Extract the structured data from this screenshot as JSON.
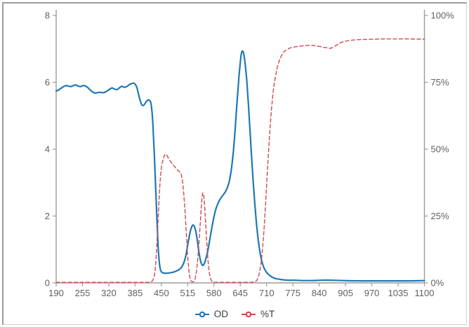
{
  "chart_data": {
    "type": "line",
    "title": "",
    "grid": false,
    "legend": {
      "position": "bottom"
    },
    "style": {
      "axis_color": "#9b9b9b",
      "tick_text_color": "#606060",
      "legend_text_color": "#3d3d3d",
      "background": "#ffffff"
    },
    "x_axis": {
      "label": "",
      "range": [
        190,
        1100
      ],
      "ticks": [
        190,
        255,
        320,
        385,
        450,
        515,
        580,
        645,
        710,
        775,
        840,
        905,
        970,
        1035,
        1100
      ]
    },
    "y_axis_left": {
      "label": "",
      "range": [
        0,
        8
      ],
      "tick_values": [
        0,
        2,
        4,
        6,
        8
      ],
      "tick_labels": [
        "0",
        "2",
        "4",
        "6",
        "8"
      ]
    },
    "y_axis_right": {
      "label": "",
      "range": [
        0,
        100
      ],
      "tick_values": [
        0,
        25,
        50,
        75,
        100
      ],
      "tick_labels": [
        "0%",
        "25%",
        "50%",
        "75%",
        "100%"
      ]
    },
    "series": [
      {
        "name": "OD",
        "axis": "left",
        "color": "#1f78b4",
        "style": "solid",
        "width": 2.2,
        "points": [
          [
            190,
            5.74
          ],
          [
            196,
            5.77
          ],
          [
            202,
            5.82
          ],
          [
            208,
            5.87
          ],
          [
            214,
            5.9
          ],
          [
            220,
            5.89
          ],
          [
            226,
            5.87
          ],
          [
            232,
            5.9
          ],
          [
            238,
            5.92
          ],
          [
            244,
            5.89
          ],
          [
            250,
            5.87
          ],
          [
            256,
            5.9
          ],
          [
            262,
            5.89
          ],
          [
            268,
            5.84
          ],
          [
            274,
            5.77
          ],
          [
            280,
            5.71
          ],
          [
            286,
            5.68
          ],
          [
            292,
            5.69
          ],
          [
            298,
            5.7
          ],
          [
            304,
            5.69
          ],
          [
            310,
            5.7
          ],
          [
            316,
            5.74
          ],
          [
            322,
            5.79
          ],
          [
            328,
            5.83
          ],
          [
            334,
            5.8
          ],
          [
            340,
            5.78
          ],
          [
            346,
            5.83
          ],
          [
            352,
            5.88
          ],
          [
            358,
            5.85
          ],
          [
            364,
            5.87
          ],
          [
            370,
            5.92
          ],
          [
            376,
            5.96
          ],
          [
            382,
            5.97
          ],
          [
            386,
            5.93
          ],
          [
            390,
            5.82
          ],
          [
            394,
            5.62
          ],
          [
            398,
            5.44
          ],
          [
            402,
            5.32
          ],
          [
            406,
            5.31
          ],
          [
            410,
            5.37
          ],
          [
            414,
            5.44
          ],
          [
            418,
            5.47
          ],
          [
            421,
            5.46
          ],
          [
            424,
            5.38
          ],
          [
            427,
            5.1
          ],
          [
            430,
            4.5
          ],
          [
            433,
            3.7
          ],
          [
            436,
            2.8
          ],
          [
            439,
            1.9
          ],
          [
            442,
            1.1
          ],
          [
            445,
            0.6
          ],
          [
            448,
            0.38
          ],
          [
            452,
            0.31
          ],
          [
            458,
            0.29
          ],
          [
            464,
            0.29
          ],
          [
            470,
            0.3
          ],
          [
            476,
            0.31
          ],
          [
            482,
            0.33
          ],
          [
            488,
            0.36
          ],
          [
            494,
            0.4
          ],
          [
            500,
            0.47
          ],
          [
            506,
            0.62
          ],
          [
            511,
            0.85
          ],
          [
            516,
            1.2
          ],
          [
            521,
            1.52
          ],
          [
            525,
            1.68
          ],
          [
            528,
            1.73
          ],
          [
            531,
            1.7
          ],
          [
            535,
            1.55
          ],
          [
            539,
            1.25
          ],
          [
            543,
            0.9
          ],
          [
            547,
            0.65
          ],
          [
            551,
            0.53
          ],
          [
            555,
            0.55
          ],
          [
            559,
            0.68
          ],
          [
            564,
            0.92
          ],
          [
            569,
            1.25
          ],
          [
            574,
            1.6
          ],
          [
            579,
            1.92
          ],
          [
            584,
            2.18
          ],
          [
            590,
            2.38
          ],
          [
            596,
            2.52
          ],
          [
            602,
            2.62
          ],
          [
            608,
            2.72
          ],
          [
            613,
            2.85
          ],
          [
            618,
            3.05
          ],
          [
            623,
            3.4
          ],
          [
            628,
            3.95
          ],
          [
            633,
            4.7
          ],
          [
            637,
            5.4
          ],
          [
            641,
            6.05
          ],
          [
            645,
            6.6
          ],
          [
            648,
            6.88
          ],
          [
            651,
            6.93
          ],
          [
            654,
            6.82
          ],
          [
            657,
            6.55
          ],
          [
            661,
            6.05
          ],
          [
            665,
            5.35
          ],
          [
            669,
            4.55
          ],
          [
            673,
            3.75
          ],
          [
            677,
            3.0
          ],
          [
            681,
            2.35
          ],
          [
            685,
            1.78
          ],
          [
            689,
            1.32
          ],
          [
            693,
            0.97
          ],
          [
            697,
            0.71
          ],
          [
            701,
            0.53
          ],
          [
            706,
            0.39
          ],
          [
            711,
            0.3
          ],
          [
            717,
            0.23
          ],
          [
            724,
            0.17
          ],
          [
            732,
            0.13
          ],
          [
            741,
            0.11
          ],
          [
            752,
            0.09
          ],
          [
            765,
            0.08
          ],
          [
            780,
            0.08
          ],
          [
            800,
            0.07
          ],
          [
            820,
            0.07
          ],
          [
            845,
            0.08
          ],
          [
            870,
            0.08
          ],
          [
            900,
            0.07
          ],
          [
            940,
            0.06
          ],
          [
            980,
            0.06
          ],
          [
            1020,
            0.06
          ],
          [
            1060,
            0.06
          ],
          [
            1100,
            0.07
          ]
        ]
      },
      {
        "name": "%T",
        "axis": "right",
        "color": "#d0484e",
        "style": "dashed",
        "width": 1.4,
        "points": [
          [
            190,
            0.2
          ],
          [
            240,
            0.2
          ],
          [
            290,
            0.2
          ],
          [
            340,
            0.2
          ],
          [
            380,
            0.2
          ],
          [
            405,
            0.2
          ],
          [
            418,
            0.2
          ],
          [
            426,
            0.5
          ],
          [
            430,
            1.5
          ],
          [
            434,
            4
          ],
          [
            438,
            12
          ],
          [
            442,
            24
          ],
          [
            446,
            36
          ],
          [
            450,
            43
          ],
          [
            454,
            46
          ],
          [
            458,
            47.8
          ],
          [
            462,
            48
          ],
          [
            466,
            47
          ],
          [
            472,
            45.5
          ],
          [
            478,
            44.3
          ],
          [
            484,
            43.2
          ],
          [
            490,
            42.2
          ],
          [
            495,
            41.5
          ],
          [
            499,
            40.5
          ],
          [
            503,
            37
          ],
          [
            507,
            30
          ],
          [
            510,
            23
          ],
          [
            513,
            15
          ],
          [
            516,
            8
          ],
          [
            519,
            3.5
          ],
          [
            522,
            1.2
          ],
          [
            526,
            0.4
          ],
          [
            530,
            0.6
          ],
          [
            534,
            2
          ],
          [
            538,
            6
          ],
          [
            542,
            13
          ],
          [
            546,
            22
          ],
          [
            549,
            29
          ],
          [
            552,
            33.5
          ],
          [
            555,
            32
          ],
          [
            558,
            26
          ],
          [
            561,
            18
          ],
          [
            564,
            11
          ],
          [
            567,
            5.5
          ],
          [
            570,
            2.5
          ],
          [
            574,
            0.8
          ],
          [
            578,
            0.3
          ],
          [
            584,
            0.2
          ],
          [
            600,
            0.2
          ],
          [
            620,
            0.2
          ],
          [
            645,
            0.2
          ],
          [
            665,
            0.2
          ],
          [
            678,
            0.3
          ],
          [
            686,
            1
          ],
          [
            691,
            3
          ],
          [
            696,
            7
          ],
          [
            700,
            13
          ],
          [
            704,
            21
          ],
          [
            708,
            31
          ],
          [
            712,
            42
          ],
          [
            716,
            52
          ],
          [
            720,
            61
          ],
          [
            724,
            68
          ],
          [
            728,
            73.5
          ],
          [
            733,
            78
          ],
          [
            738,
            81.5
          ],
          [
            744,
            84
          ],
          [
            750,
            85.8
          ],
          [
            758,
            87
          ],
          [
            766,
            87.7
          ],
          [
            775,
            88.1
          ],
          [
            788,
            88.4
          ],
          [
            800,
            88.6
          ],
          [
            812,
            88.8
          ],
          [
            824,
            88.8
          ],
          [
            836,
            88.5
          ],
          [
            848,
            88.2
          ],
          [
            858,
            87.9
          ],
          [
            866,
            87.7
          ],
          [
            872,
            87.9
          ],
          [
            880,
            88.6
          ],
          [
            888,
            89.4
          ],
          [
            896,
            90.0
          ],
          [
            906,
            90.4
          ],
          [
            918,
            90.7
          ],
          [
            932,
            90.9
          ],
          [
            950,
            91.0
          ],
          [
            975,
            91.1
          ],
          [
            1000,
            91.2
          ],
          [
            1030,
            91.2
          ],
          [
            1060,
            91.2
          ],
          [
            1100,
            91.1
          ]
        ]
      }
    ]
  }
}
